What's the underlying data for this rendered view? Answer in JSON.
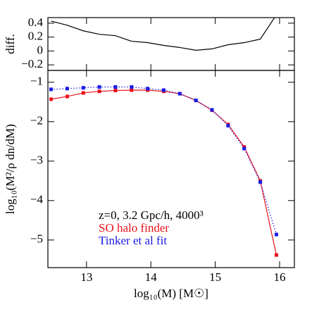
{
  "chart_data": [
    {
      "type": "line",
      "ylabel": "diff.",
      "x": [
        12.45,
        12.7,
        12.95,
        13.2,
        13.45,
        13.7,
        13.95,
        14.2,
        14.45,
        14.7,
        14.95,
        15.2,
        15.45,
        15.7,
        15.95
      ],
      "series": [
        {
          "color": "#000000",
          "values": [
            0.43,
            0.37,
            0.29,
            0.24,
            0.22,
            0.14,
            0.12,
            0.08,
            0.05,
            0.01,
            0.03,
            0.09,
            0.12,
            0.17,
            0.52
          ]
        }
      ],
      "xlim": [
        12.4,
        16.23
      ],
      "xticks": [
        13,
        14,
        15,
        16
      ],
      "show_xtick_labels": false,
      "ylim": [
        -0.28,
        0.48
      ],
      "yticks": [
        {
          "value": 0.4,
          "label": "0.4"
        },
        {
          "value": 0.2,
          "label": "0.2"
        },
        0,
        {
          "value": -0.2,
          "label": "−0.2"
        }
      ]
    },
    {
      "type": "line",
      "ylabel": "log₁₀(M²/ρ dn/dM)",
      "xlabel": "log₁₀(M) [M☉]",
      "annotation": "z=0, 3.2 Gpc/h, 4000³",
      "x": [
        12.45,
        12.7,
        12.95,
        13.2,
        13.45,
        13.7,
        13.95,
        14.2,
        14.45,
        14.7,
        14.95,
        15.2,
        15.45,
        15.7,
        15.95
      ],
      "series": [
        {
          "name": "SO halo finder",
          "color": "#e8121a",
          "dash": "solid",
          "values": [
            -1.43,
            -1.36,
            -1.27,
            -1.23,
            -1.21,
            -1.2,
            -1.2,
            -1.23,
            -1.29,
            -1.46,
            -1.71,
            -2.07,
            -2.64,
            -3.5,
            -5.38
          ]
        },
        {
          "name": "Tinker et al fit",
          "color": "#1a1ae8",
          "dash": "dotted",
          "values": [
            -1.18,
            -1.16,
            -1.14,
            -1.12,
            -1.12,
            -1.12,
            -1.16,
            -1.2,
            -1.29,
            -1.46,
            -1.7,
            -2.1,
            -2.68,
            -3.53,
            -4.86
          ]
        }
      ],
      "xlim": [
        12.4,
        16.23
      ],
      "xticks": [
        13,
        14,
        15,
        16
      ],
      "show_xtick_labels": true,
      "ylim": [
        -5.7,
        -0.7
      ],
      "yticks": [
        {
          "value": -1,
          "label": "−1"
        },
        {
          "value": -2,
          "label": "−2"
        },
        {
          "value": -3,
          "label": "−3"
        },
        {
          "value": -4,
          "label": "−4"
        },
        {
          "value": -5,
          "label": "−5"
        }
      ]
    }
  ]
}
